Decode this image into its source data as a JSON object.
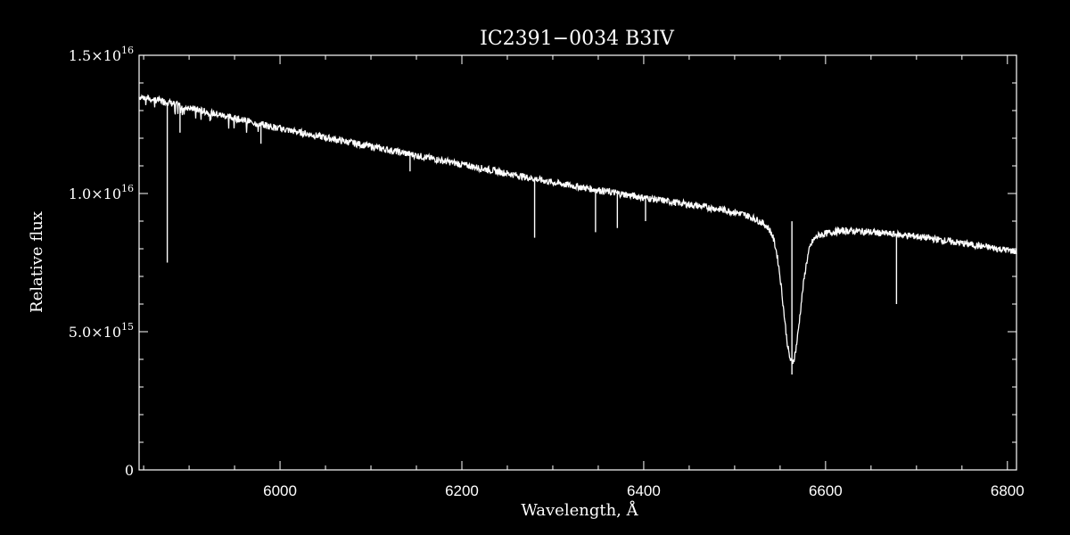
{
  "chart_data": {
    "type": "line",
    "title": "IC2391−0034   B3IV",
    "xlabel": "Wavelength, Å",
    "ylabel": "Relative flux",
    "xlim": [
      5845,
      6810
    ],
    "ylim": [
      0,
      1.5e+16
    ],
    "grid": false,
    "x_ticks": [
      {
        "value": 6000,
        "label": "6000"
      },
      {
        "value": 6200,
        "label": "6200"
      },
      {
        "value": 6400,
        "label": "6400"
      },
      {
        "value": 6600,
        "label": "6600"
      },
      {
        "value": 6800,
        "label": "6800"
      }
    ],
    "y_ticks": [
      {
        "value": 0,
        "mant": "0",
        "exp": ""
      },
      {
        "value": 5000000000000000.0,
        "mant": "5.0×10",
        "exp": "15"
      },
      {
        "value": 1e+16,
        "mant": "1.0×10",
        "exp": "16"
      },
      {
        "value": 1.5e+16,
        "mant": "1.5×10",
        "exp": "16"
      }
    ],
    "continuum": {
      "x": [
        5845,
        5870,
        5900,
        6000,
        6100,
        6200,
        6300,
        6400,
        6500,
        6540,
        6600,
        6700,
        6810
      ],
      "y": [
        1.35e+16,
        1.335e+16,
        1.31e+16,
        1.235e+16,
        1.17e+16,
        1.105e+16,
        1.04e+16,
        9850000000000000.0,
        9350000000000000.0,
        9150000000000000.0,
        8750000000000000.0,
        8450000000000000.0,
        7900000000000000.0
      ]
    },
    "absorption_lines": [
      {
        "x": 5876,
        "y_min": 7500000000000000.0
      },
      {
        "x": 5890,
        "y_min": 1.22e+16
      },
      {
        "x": 5979,
        "y_min": 1.18e+16
      },
      {
        "x": 6143,
        "y_min": 1.08e+16
      },
      {
        "x": 6280,
        "y_min": 8400000000000000.0
      },
      {
        "x": 6347,
        "y_min": 8600000000000000.0
      },
      {
        "x": 6371,
        "y_min": 8750000000000000.0
      },
      {
        "x": 6402,
        "y_min": 9000000000000000.0
      },
      {
        "x": 6563,
        "y_min": 3450000000000000.0
      },
      {
        "x": 6678,
        "y_min": 6000000000000000.0
      }
    ]
  }
}
